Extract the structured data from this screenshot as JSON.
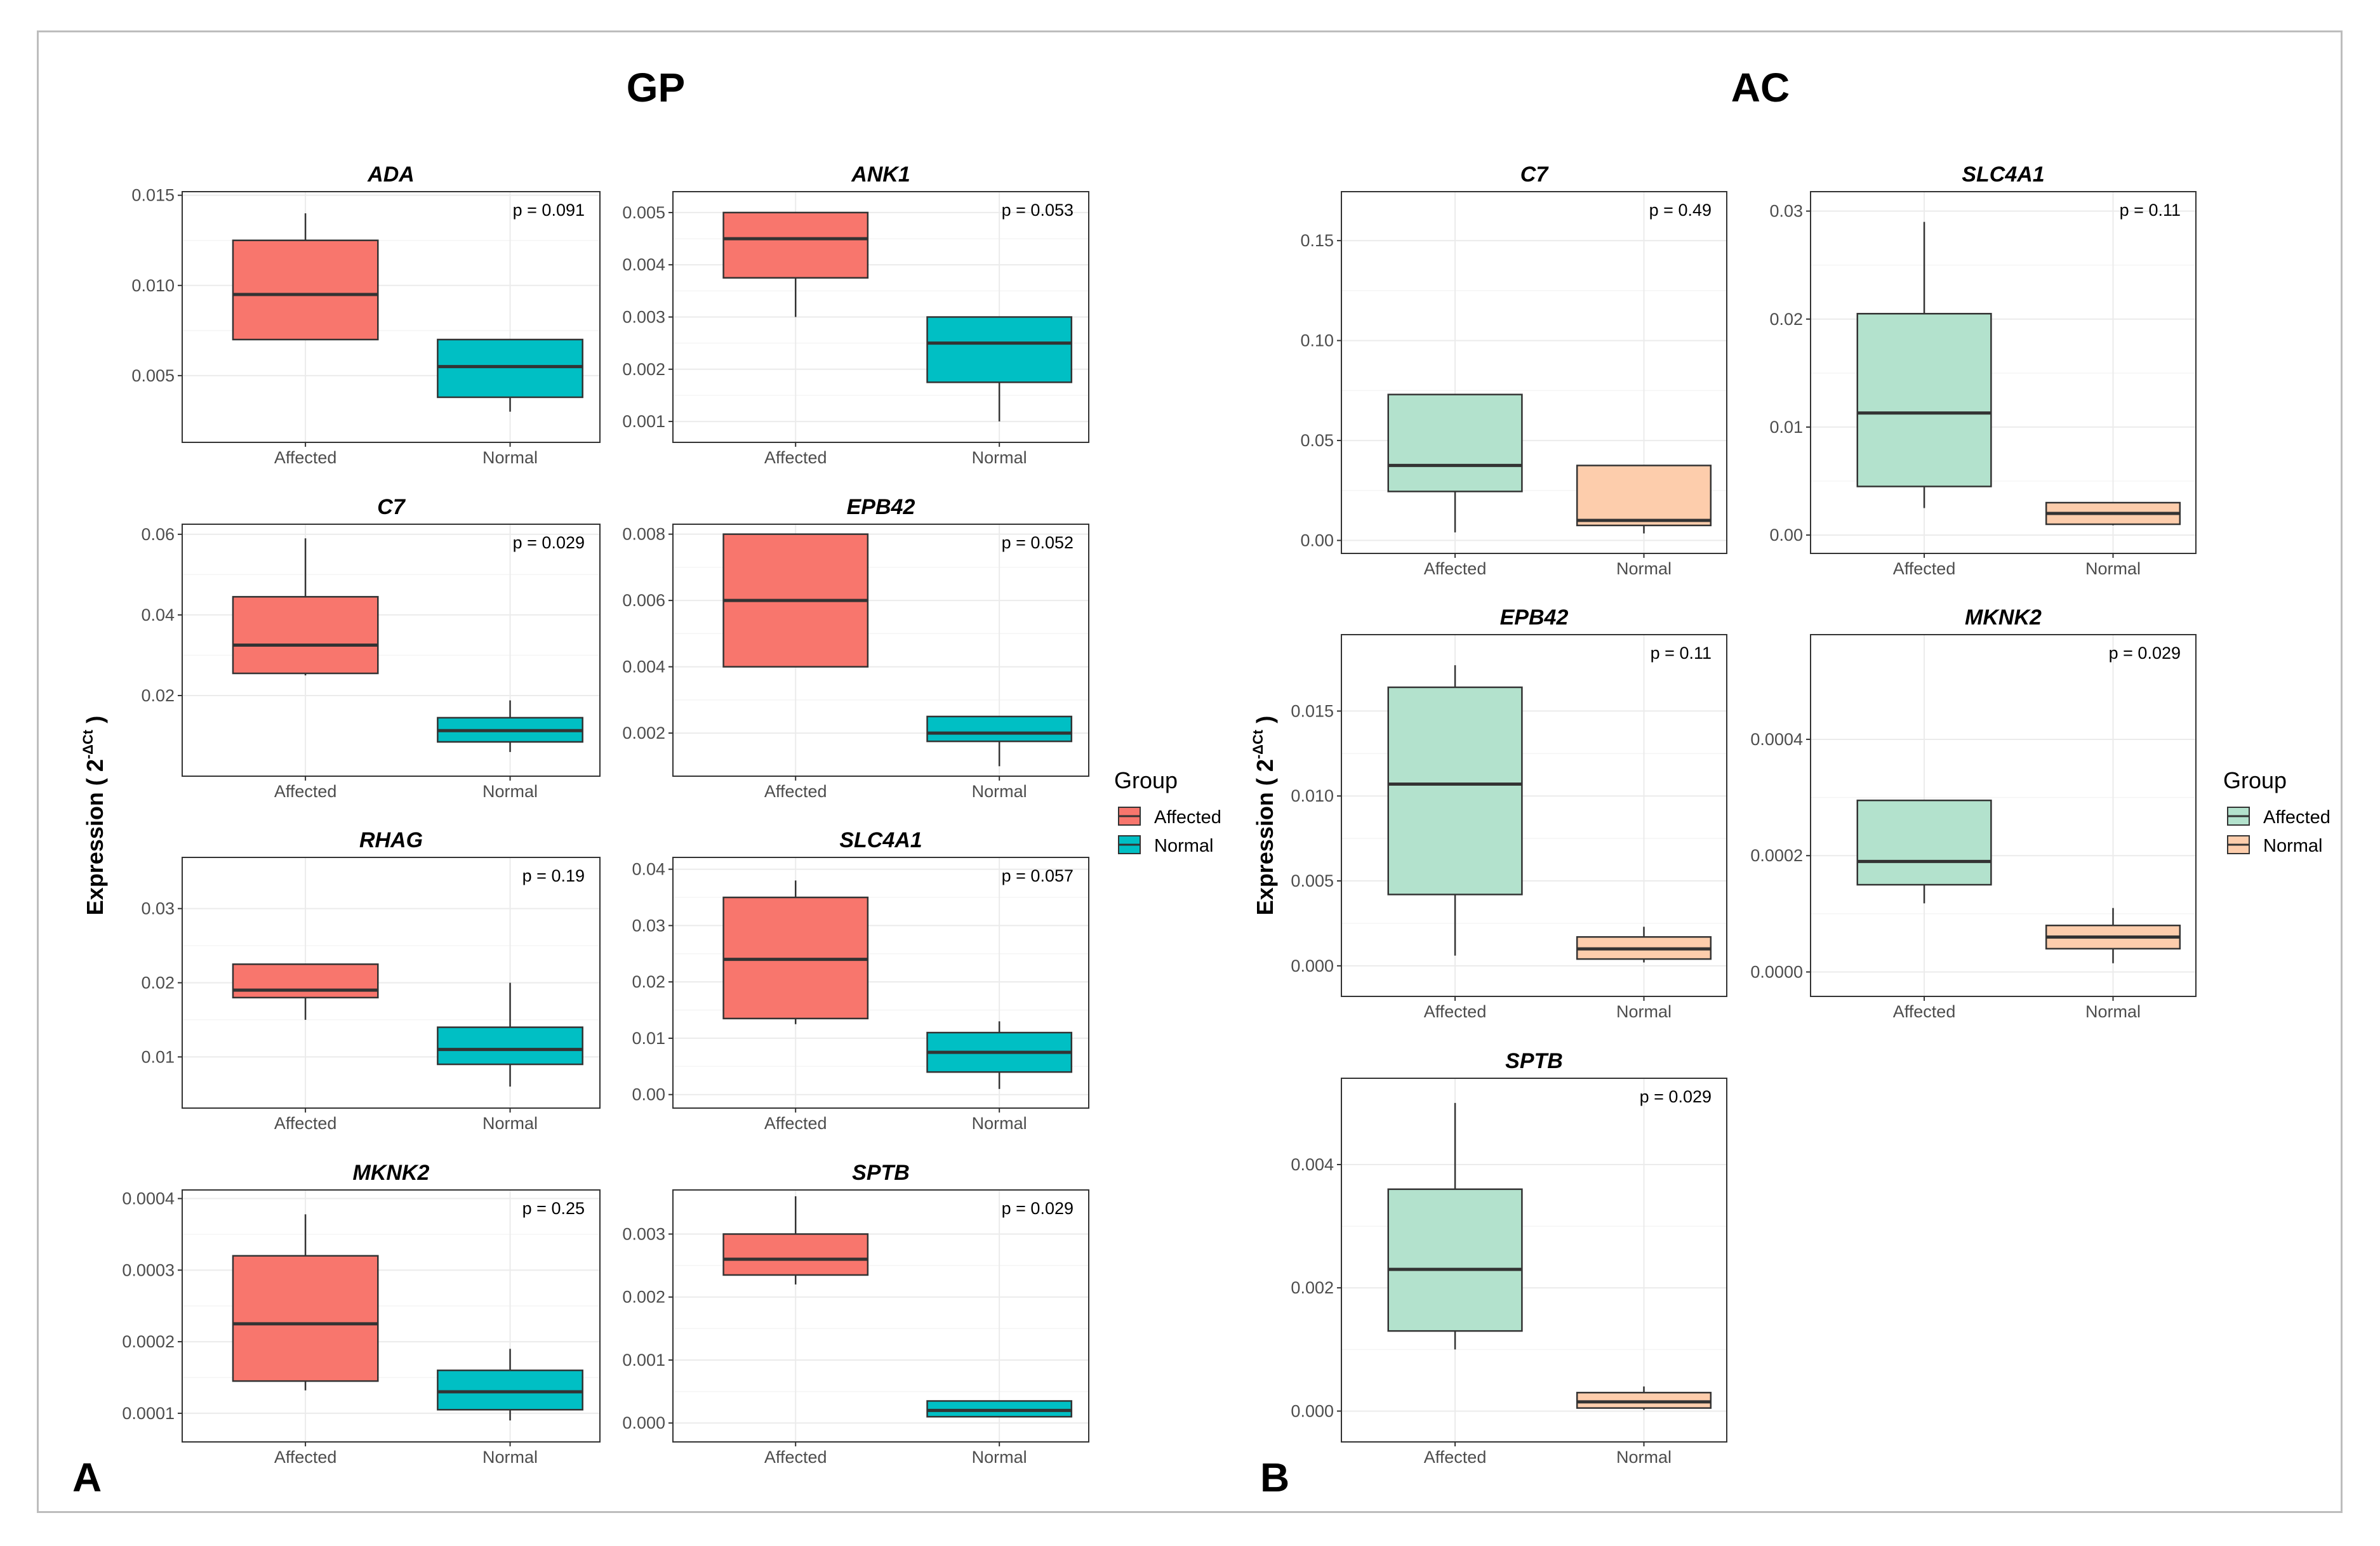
{
  "figure": {
    "left_title": "GP",
    "right_title": "AC",
    "left_letter": "A",
    "right_letter": "B",
    "y_label": "Expression ( 2",
    "y_label_sup": "-ΔCt",
    "y_label_end": ")",
    "legend_title": "Group",
    "legend_items": [
      "Affected",
      "Normal"
    ]
  },
  "colors": {
    "gp_affected": "#F8766D",
    "gp_normal": "#00BFC4",
    "ac_affected": "#B3E2CD",
    "ac_normal": "#FDCDAC"
  },
  "chart_data": [
    {
      "type": "box",
      "panel": "GP",
      "title": "ADA",
      "p_value": "p = 0.091",
      "categories": [
        "Affected",
        "Normal"
      ],
      "ylim": [
        0.0013,
        0.0152
      ],
      "ticks": [
        {
          "v": 0.005,
          "label": "0.005"
        },
        {
          "v": 0.01,
          "label": "0.010"
        },
        {
          "v": 0.015,
          "label": "0.015"
        }
      ],
      "boxes": [
        {
          "group": "Affected",
          "min": 0.007,
          "q1": 0.007,
          "median": 0.0095,
          "q3": 0.0125,
          "max": 0.014
        },
        {
          "group": "Normal",
          "min": 0.003,
          "q1": 0.0038,
          "median": 0.0055,
          "q3": 0.007,
          "max": 0.007
        }
      ]
    },
    {
      "type": "box",
      "panel": "GP",
      "title": "ANK1",
      "p_value": "p = 0.053",
      "categories": [
        "Affected",
        "Normal"
      ],
      "ylim": [
        0.0006,
        0.0054
      ],
      "ticks": [
        {
          "v": 0.001,
          "label": "0.001"
        },
        {
          "v": 0.002,
          "label": "0.002"
        },
        {
          "v": 0.003,
          "label": "0.003"
        },
        {
          "v": 0.004,
          "label": "0.004"
        },
        {
          "v": 0.005,
          "label": "0.005"
        }
      ],
      "boxes": [
        {
          "group": "Affected",
          "min": 0.003,
          "q1": 0.00375,
          "median": 0.0045,
          "q3": 0.005,
          "max": 0.005
        },
        {
          "group": "Normal",
          "min": 0.001,
          "q1": 0.00175,
          "median": 0.0025,
          "q3": 0.003,
          "max": 0.003
        }
      ]
    },
    {
      "type": "box",
      "panel": "GP",
      "title": "C7",
      "p_value": "p = 0.029",
      "categories": [
        "Affected",
        "Normal"
      ],
      "ylim": [
        0.0,
        0.0625
      ],
      "ticks": [
        {
          "v": 0.02,
          "label": "0.02"
        },
        {
          "v": 0.04,
          "label": "0.04"
        },
        {
          "v": 0.06,
          "label": "0.06"
        }
      ],
      "boxes": [
        {
          "group": "Affected",
          "min": 0.025,
          "q1": 0.0255,
          "median": 0.0325,
          "q3": 0.0445,
          "max": 0.059
        },
        {
          "group": "Normal",
          "min": 0.006,
          "q1": 0.0085,
          "median": 0.0113,
          "q3": 0.0145,
          "max": 0.0188
        }
      ]
    },
    {
      "type": "box",
      "panel": "GP",
      "title": "EPB42",
      "p_value": "p = 0.052",
      "categories": [
        "Affected",
        "Normal"
      ],
      "ylim": [
        0.0007,
        0.0083
      ],
      "ticks": [
        {
          "v": 0.002,
          "label": "0.002"
        },
        {
          "v": 0.004,
          "label": "0.004"
        },
        {
          "v": 0.006,
          "label": "0.006"
        },
        {
          "v": 0.008,
          "label": "0.008"
        }
      ],
      "boxes": [
        {
          "group": "Affected",
          "min": 0.004,
          "q1": 0.004,
          "median": 0.006,
          "q3": 0.008,
          "max": 0.008
        },
        {
          "group": "Normal",
          "min": 0.001,
          "q1": 0.00175,
          "median": 0.002,
          "q3": 0.0025,
          "max": 0.0025
        }
      ]
    },
    {
      "type": "box",
      "panel": "GP",
      "title": "RHAG",
      "p_value": "p = 0.19",
      "categories": [
        "Affected",
        "Normal"
      ],
      "ylim": [
        0.0031,
        0.0369
      ],
      "ticks": [
        {
          "v": 0.01,
          "label": "0.01"
        },
        {
          "v": 0.02,
          "label": "0.02"
        },
        {
          "v": 0.03,
          "label": "0.03"
        }
      ],
      "boxes": [
        {
          "group": "Affected",
          "min": 0.015,
          "q1": 0.018,
          "median": 0.019,
          "q3": 0.0225,
          "max": 0.0225
        },
        {
          "group": "Normal",
          "min": 0.006,
          "q1": 0.009,
          "median": 0.011,
          "q3": 0.014,
          "max": 0.02
        }
      ]
    },
    {
      "type": "box",
      "panel": "GP",
      "title": "SLC4A1",
      "p_value": "p = 0.057",
      "categories": [
        "Affected",
        "Normal"
      ],
      "ylim": [
        -0.0024,
        0.0421
      ],
      "ticks": [
        {
          "v": 0.0,
          "label": "0.00"
        },
        {
          "v": 0.01,
          "label": "0.01"
        },
        {
          "v": 0.02,
          "label": "0.02"
        },
        {
          "v": 0.03,
          "label": "0.03"
        },
        {
          "v": 0.04,
          "label": "0.04"
        }
      ],
      "boxes": [
        {
          "group": "Affected",
          "min": 0.0125,
          "q1": 0.0135,
          "median": 0.024,
          "q3": 0.035,
          "max": 0.038
        },
        {
          "group": "Normal",
          "min": 0.001,
          "q1": 0.004,
          "median": 0.0075,
          "q3": 0.011,
          "max": 0.013
        }
      ]
    },
    {
      "type": "box",
      "panel": "GP",
      "title": "MKNK2",
      "p_value": "p = 0.25",
      "categories": [
        "Affected",
        "Normal"
      ],
      "ylim": [
        6e-05,
        0.000412
      ],
      "ticks": [
        {
          "v": 0.0001,
          "label": "0.0001"
        },
        {
          "v": 0.0002,
          "label": "0.0002"
        },
        {
          "v": 0.0003,
          "label": "0.0003"
        },
        {
          "v": 0.0004,
          "label": "0.0004"
        }
      ],
      "boxes": [
        {
          "group": "Affected",
          "min": 0.000132,
          "q1": 0.000145,
          "median": 0.000225,
          "q3": 0.00032,
          "max": 0.000378
        },
        {
          "group": "Normal",
          "min": 9e-05,
          "q1": 0.000105,
          "median": 0.00013,
          "q3": 0.00016,
          "max": 0.00019
        }
      ]
    },
    {
      "type": "box",
      "panel": "GP",
      "title": "SPTB",
      "p_value": "p = 0.029",
      "categories": [
        "Affected",
        "Normal"
      ],
      "ylim": [
        -0.0003,
        0.0037
      ],
      "ticks": [
        {
          "v": 0.0,
          "label": "0.000"
        },
        {
          "v": 0.001,
          "label": "0.001"
        },
        {
          "v": 0.002,
          "label": "0.002"
        },
        {
          "v": 0.003,
          "label": "0.003"
        }
      ],
      "boxes": [
        {
          "group": "Affected",
          "min": 0.0022,
          "q1": 0.00235,
          "median": 0.0026,
          "q3": 0.003,
          "max": 0.0036
        },
        {
          "group": "Normal",
          "min": 0.0001,
          "q1": 0.0001,
          "median": 0.0002,
          "q3": 0.00035,
          "max": 0.00035
        }
      ]
    },
    {
      "type": "box",
      "panel": "AC",
      "title": "C7",
      "p_value": "p = 0.49",
      "categories": [
        "Affected",
        "Normal"
      ],
      "ylim": [
        -0.0065,
        0.1745
      ],
      "ticks": [
        {
          "v": 0.0,
          "label": "0.00"
        },
        {
          "v": 0.05,
          "label": "0.05"
        },
        {
          "v": 0.1,
          "label": "0.10"
        },
        {
          "v": 0.15,
          "label": "0.15"
        }
      ],
      "boxes": [
        {
          "group": "Affected",
          "min": 0.004,
          "q1": 0.0245,
          "median": 0.0375,
          "q3": 0.073,
          "max": 0.073
        },
        {
          "group": "Normal",
          "min": 0.0035,
          "q1": 0.0075,
          "median": 0.01,
          "q3": 0.0375,
          "max": 0.0375
        }
      ]
    },
    {
      "type": "box",
      "panel": "AC",
      "title": "SLC4A1",
      "p_value": "p = 0.11",
      "categories": [
        "Affected",
        "Normal"
      ],
      "ylim": [
        -0.0017,
        0.0318
      ],
      "ticks": [
        {
          "v": 0.0,
          "label": "0.00"
        },
        {
          "v": 0.01,
          "label": "0.01"
        },
        {
          "v": 0.02,
          "label": "0.02"
        },
        {
          "v": 0.03,
          "label": "0.03"
        }
      ],
      "boxes": [
        {
          "group": "Affected",
          "min": 0.0025,
          "q1": 0.0045,
          "median": 0.0113,
          "q3": 0.0205,
          "max": 0.029
        },
        {
          "group": "Normal",
          "min": 0.0009,
          "q1": 0.001,
          "median": 0.002,
          "q3": 0.003,
          "max": 0.003
        }
      ]
    },
    {
      "type": "box",
      "panel": "AC",
      "title": "EPB42",
      "p_value": "p = 0.11",
      "categories": [
        "Affected",
        "Normal"
      ],
      "ylim": [
        -0.0018,
        0.0195
      ],
      "ticks": [
        {
          "v": 0.0,
          "label": "0.000"
        },
        {
          "v": 0.005,
          "label": "0.005"
        },
        {
          "v": 0.01,
          "label": "0.010"
        },
        {
          "v": 0.015,
          "label": "0.015"
        }
      ],
      "boxes": [
        {
          "group": "Affected",
          "min": 0.0006,
          "q1": 0.0042,
          "median": 0.0107,
          "q3": 0.0164,
          "max": 0.0177
        },
        {
          "group": "Normal",
          "min": 0.0002,
          "q1": 0.0004,
          "median": 0.001,
          "q3": 0.0017,
          "max": 0.0023
        }
      ]
    },
    {
      "type": "box",
      "panel": "AC",
      "title": "MKNK2",
      "p_value": "p = 0.029",
      "categories": [
        "Affected",
        "Normal"
      ],
      "ylim": [
        -4.2e-05,
        0.00058
      ],
      "ticks": [
        {
          "v": 0.0,
          "label": "0.0000"
        },
        {
          "v": 0.0002,
          "label": "0.0002"
        },
        {
          "v": 0.0004,
          "label": "0.0004"
        }
      ],
      "boxes": [
        {
          "group": "Affected",
          "min": 0.000118,
          "q1": 0.00015,
          "median": 0.00019,
          "q3": 0.000295,
          "max": 0.000295
        },
        {
          "group": "Normal",
          "min": 1.5e-05,
          "q1": 4e-05,
          "median": 6e-05,
          "q3": 8e-05,
          "max": 0.00011
        }
      ]
    },
    {
      "type": "box",
      "panel": "AC",
      "title": "SPTB",
      "p_value": "p = 0.029",
      "categories": [
        "Affected",
        "Normal"
      ],
      "ylim": [
        -0.0005,
        0.0054
      ],
      "ticks": [
        {
          "v": 0.0,
          "label": "0.000"
        },
        {
          "v": 0.002,
          "label": "0.002"
        },
        {
          "v": 0.004,
          "label": "0.004"
        }
      ],
      "boxes": [
        {
          "group": "Affected",
          "min": 0.001,
          "q1": 0.0013,
          "median": 0.0023,
          "q3": 0.0036,
          "max": 0.005
        },
        {
          "group": "Normal",
          "min": 2e-05,
          "q1": 5e-05,
          "median": 0.00015,
          "q3": 0.0003,
          "max": 0.0004
        }
      ]
    }
  ]
}
